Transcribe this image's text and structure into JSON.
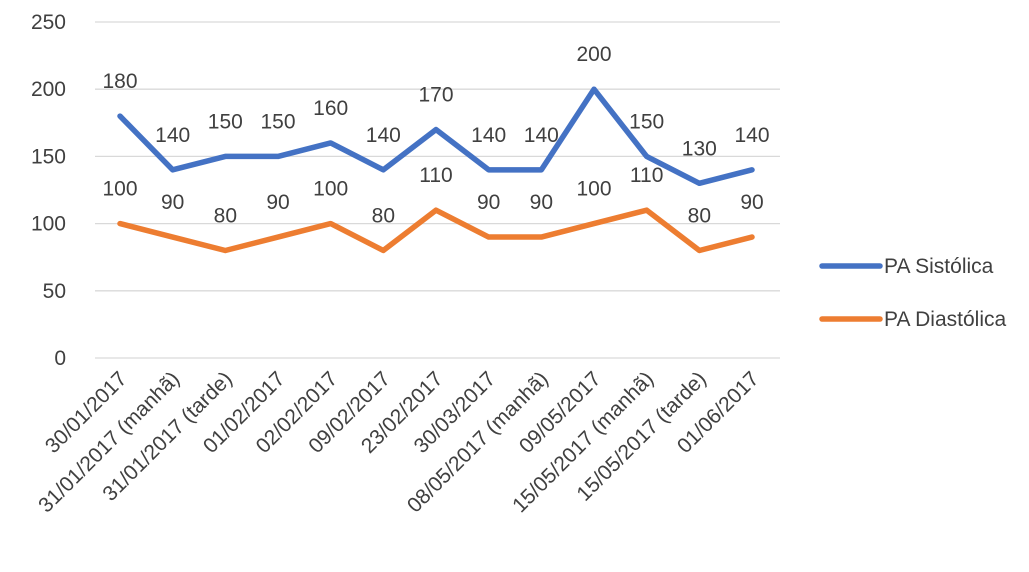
{
  "chart_data": {
    "type": "line",
    "title": "",
    "xlabel": "",
    "ylabel": "",
    "ylim": [
      0,
      250
    ],
    "yticks": [
      0,
      50,
      100,
      150,
      200,
      250
    ],
    "grid": true,
    "legend_position": "right",
    "data_labels": true,
    "categories": [
      "30/01/2017",
      "31/01/2017 (manhã)",
      "31/01/2017 (tarde)",
      "01/02/2017",
      "02/02/2017",
      "09/02/2017",
      "23/02/2017",
      "30/03/2017",
      "08/05/2017 (manhã)",
      "09/05/2017",
      "15/05/2017 (manhã)",
      "15/05/2017 (tarde)",
      "01/06/2017"
    ],
    "series": [
      {
        "name": "PA Sistólica",
        "color": "#4472c4",
        "values": [
          180,
          140,
          150,
          150,
          160,
          140,
          170,
          140,
          140,
          200,
          150,
          130,
          140
        ]
      },
      {
        "name": "PA Diastólica",
        "color": "#ed7d31",
        "values": [
          100,
          90,
          80,
          90,
          100,
          80,
          110,
          90,
          90,
          100,
          110,
          80,
          90
        ]
      }
    ]
  }
}
